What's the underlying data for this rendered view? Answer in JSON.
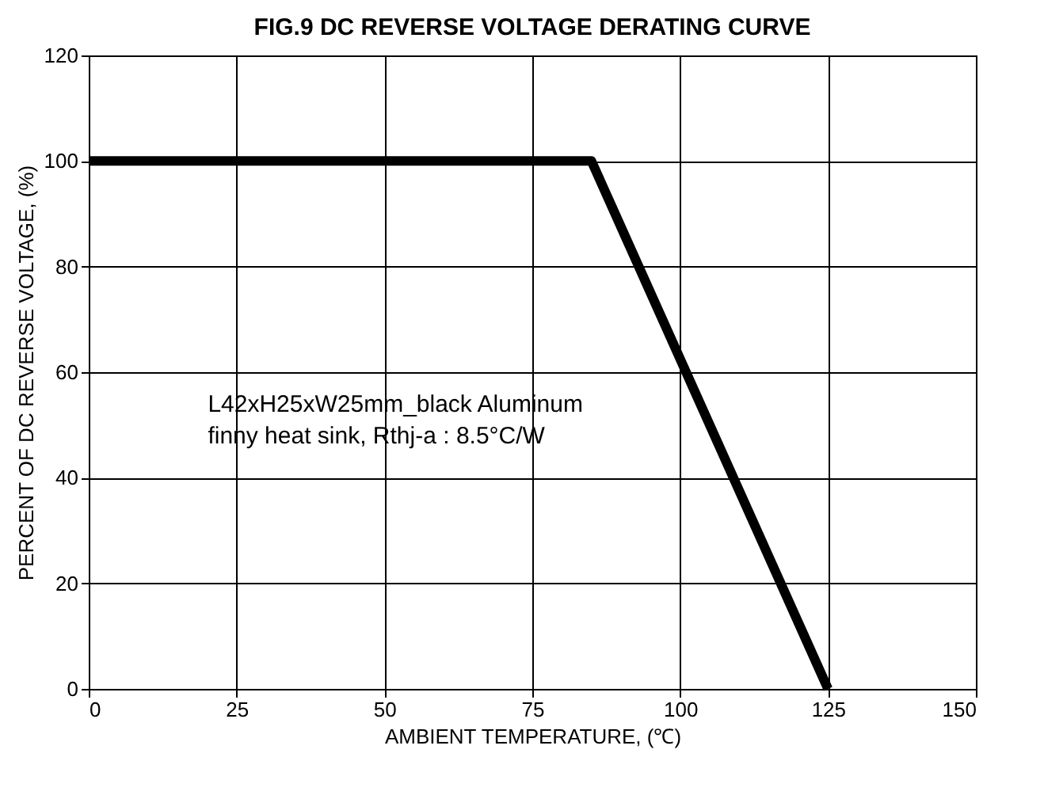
{
  "chart_data": {
    "type": "line",
    "title": "FIG.9  DC REVERSE VOLTAGE DERATING CURVE",
    "xlabel": "AMBIENT TEMPERATURE, (℃)",
    "ylabel": "PERCENT OF DC REVERSE VOLTAGE, (%)",
    "x": [
      0,
      85,
      125
    ],
    "series": [
      {
        "color": "#000000",
        "values": [
          100,
          100,
          0
        ]
      }
    ],
    "xlim": [
      0,
      150
    ],
    "xticks": [
      0,
      25,
      50,
      75,
      100,
      125,
      150
    ],
    "ylim": [
      0,
      120
    ],
    "yticks": [
      0,
      20,
      40,
      60,
      80,
      100,
      120
    ],
    "grid": true,
    "marker": "none",
    "line_style": "solid",
    "annotations": [
      "L42xH25xW25mm_black Aluminum\nfinny heat sink, Rthj-a : 8.5°C/W"
    ]
  }
}
